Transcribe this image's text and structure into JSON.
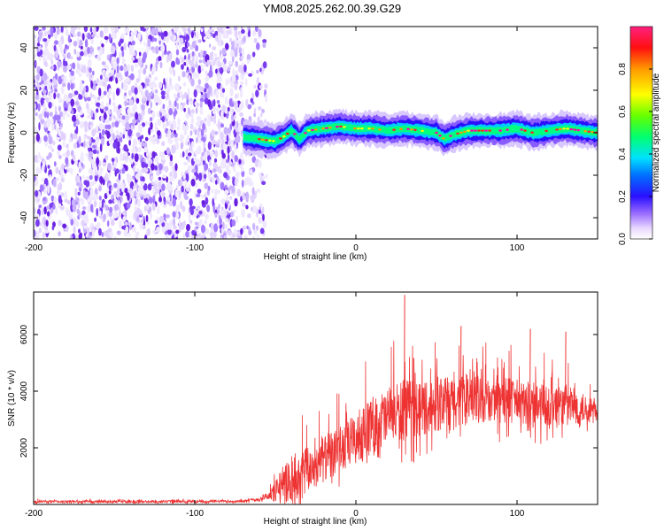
{
  "title": "YM08.2025.262.00.39.G29",
  "chart_data": [
    {
      "type": "heatmap",
      "xlabel": "Height of straight line (km)",
      "ylabel": "Frequency (Hz)",
      "xlim": [
        -200,
        150
      ],
      "ylim": [
        -50,
        50
      ],
      "x_ticks": [
        -200,
        -100,
        0,
        100
      ],
      "y_ticks": [
        -40,
        -20,
        0,
        20,
        40
      ],
      "noise_region_x": [
        -200,
        -55
      ],
      "signal_track": {
        "x": [
          -70,
          -60,
          -50,
          -45,
          -40,
          -35,
          -30,
          -20,
          -10,
          0,
          10,
          20,
          30,
          40,
          50,
          55,
          60,
          65,
          70,
          80,
          90,
          100,
          110,
          120,
          130,
          140,
          150
        ],
        "y": [
          -2,
          -3,
          -4,
          -2,
          1,
          -3,
          1,
          2,
          3,
          2,
          2,
          1,
          2,
          1,
          0,
          -3,
          -1,
          0,
          1,
          1,
          1,
          2,
          0,
          1,
          2,
          1,
          0
        ]
      },
      "colorbar": {
        "label": "Normalized spectral amplitude",
        "range": [
          0,
          1
        ],
        "ticks": [
          0.0,
          0.2,
          0.4,
          0.6,
          0.8
        ],
        "tick_labels": [
          "0.0",
          "0.2",
          "0.4",
          "0.6",
          "0.8"
        ]
      }
    },
    {
      "type": "line",
      "xlabel": "Height of straight line (km)",
      "ylabel": "SNR (10 * v/v)",
      "xlim": [
        -200,
        150
      ],
      "ylim": [
        0,
        7500
      ],
      "x_ticks": [
        -200,
        -100,
        0,
        100
      ],
      "y_ticks": [
        2000,
        4000,
        6000
      ],
      "series": [
        {
          "color": "#ee3333",
          "envelope": {
            "x": [
              -200,
              -150,
              -100,
              -70,
              -60,
              -55,
              -45,
              -40,
              -35,
              -30,
              -20,
              -10,
              0,
              10,
              20,
              30,
              40,
              50,
              60,
              70,
              80,
              90,
              100,
              110,
              120,
              130,
              140,
              150
            ],
            "base": [
              100,
              100,
              100,
              120,
              180,
              300,
              600,
              900,
              1000,
              1200,
              1600,
              1900,
              2300,
              2800,
              3100,
              3300,
              3400,
              3500,
              3600,
              3700,
              3700,
              3700,
              3600,
              3500,
              3500,
              3500,
              3400,
              3300
            ],
            "amp": [
              80,
              80,
              80,
              80,
              100,
              250,
              1200,
              1600,
              1600,
              1500,
              1500,
              1600,
              1700,
              1800,
              1900,
              2000,
              1800,
              1700,
              1700,
              1600,
              1500,
              1500,
              1500,
              1500,
              1500,
              1400,
              1000,
              600
            ]
          },
          "peaks": [
            {
              "x": 30,
              "y": 7400
            },
            {
              "x": 65,
              "y": 6300
            },
            {
              "x": 108,
              "y": 6200
            },
            {
              "x": 130,
              "y": 6100
            }
          ]
        }
      ]
    }
  ]
}
